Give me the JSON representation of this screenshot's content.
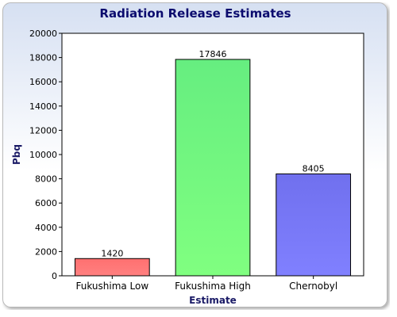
{
  "chart_data": {
    "type": "bar",
    "title": "Radiation Release Estimates",
    "xlabel": "Estimate",
    "ylabel": "Pbq",
    "categories": [
      "Fukushima Low",
      "Fukushima High",
      "Chernobyl"
    ],
    "values": [
      1420,
      17846,
      8405
    ],
    "data_labels": [
      "1420",
      "17846",
      "8405"
    ],
    "ylim": [
      0,
      20000
    ],
    "y_ticks": [
      0,
      2000,
      4000,
      6000,
      8000,
      10000,
      12000,
      14000,
      16000,
      18000,
      20000
    ],
    "y_tick_labels": [
      "0",
      "2000",
      "4000",
      "6000",
      "8000",
      "10000",
      "12000",
      "14000",
      "16000",
      "18000",
      "20000"
    ],
    "grid": false,
    "legend": "none",
    "colors": [
      "#ff8080",
      "#80ff80",
      "#8080ff"
    ],
    "colors_light": [
      "#ff7070",
      "#66ee80",
      "#7070ee"
    ],
    "title_color": "#0b0b6e",
    "label_color": "#1a1a66"
  }
}
